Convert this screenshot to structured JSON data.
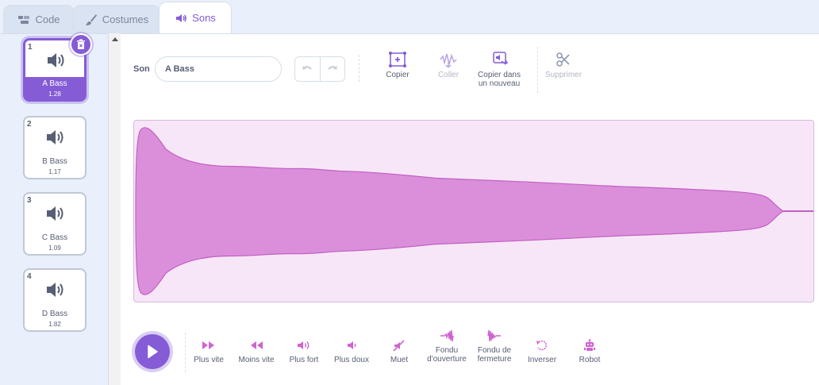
{
  "tabs": [
    {
      "label": "Code",
      "icon": "code-icon"
    },
    {
      "label": "Costumes",
      "icon": "brush-icon"
    },
    {
      "label": "Sons",
      "icon": "speaker-icon"
    }
  ],
  "sounds": [
    {
      "num": "1",
      "name": "A Bass",
      "duration": "1.28",
      "selected": true
    },
    {
      "num": "2",
      "name": "B Bass",
      "duration": "1.17"
    },
    {
      "num": "3",
      "name": "C Bass",
      "duration": "1.09"
    },
    {
      "num": "4",
      "name": "D Bass",
      "duration": "1.82"
    }
  ],
  "editor": {
    "son_label": "Son",
    "sound_name": "A Bass",
    "tools": {
      "copy": "Copier",
      "paste": "Coller",
      "copy_new_1": "Copier dans",
      "copy_new_2": "un nouveau",
      "delete": "Supprimer"
    }
  },
  "effects": {
    "faster": "Plus vite",
    "slower": "Moins vite",
    "louder": "Plus fort",
    "softer": "Plus doux",
    "mute": "Muet",
    "fade_in_1": "Fondu",
    "fade_in_2": "d'ouverture",
    "fade_out_1": "Fondu de",
    "fade_out_2": "fermeture",
    "reverse": "Inverser",
    "robot": "Robot"
  },
  "colors": {
    "accent": "#855cd6",
    "sound_pink": "#cf63cf",
    "wave_fill": "#db8fdb"
  }
}
